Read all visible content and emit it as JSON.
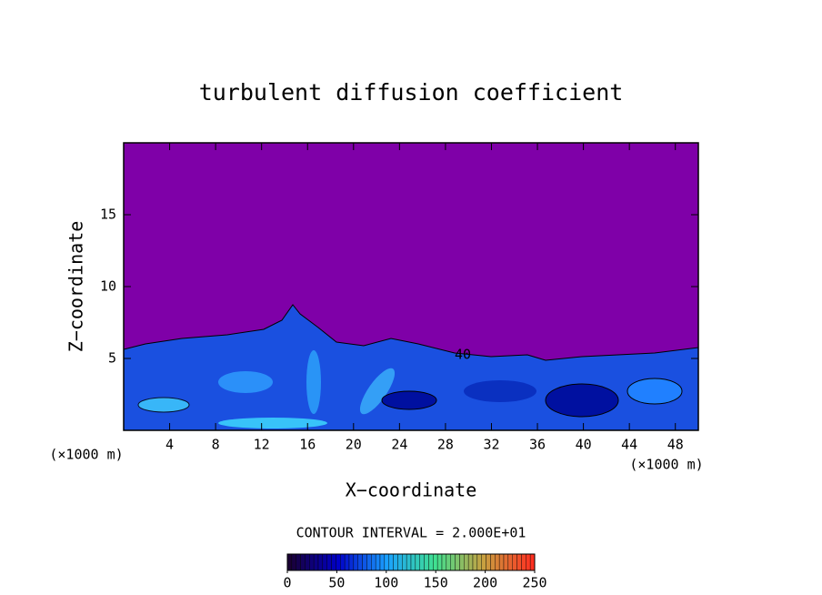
{
  "chart_data": {
    "type": "contour",
    "title": "turbulent diffusion coefficient",
    "x_label": "X−coordinate",
    "y_label": "Z−coordinate",
    "x_unit_label": "(×1000 m)",
    "contour_interval_label": "CONTOUR INTERVAL = 2.000E+01",
    "contour_labels": [
      "40"
    ],
    "background_color": "#7f00a8",
    "xlim": [
      0,
      50
    ],
    "xticks": [
      4,
      8,
      12,
      16,
      20,
      24,
      28,
      32,
      36,
      40,
      44,
      48
    ],
    "ylim": [
      0,
      20
    ],
    "yticks": [
      5,
      10,
      15
    ],
    "colorbar": {
      "lim": [
        0,
        250
      ],
      "ticks": [
        0,
        50,
        100,
        150,
        200,
        250
      ],
      "colors": [
        "#1a0033",
        "#0000c8",
        "#1aa0ff",
        "#40e090",
        "#c8a040",
        "#ff3020"
      ]
    }
  }
}
